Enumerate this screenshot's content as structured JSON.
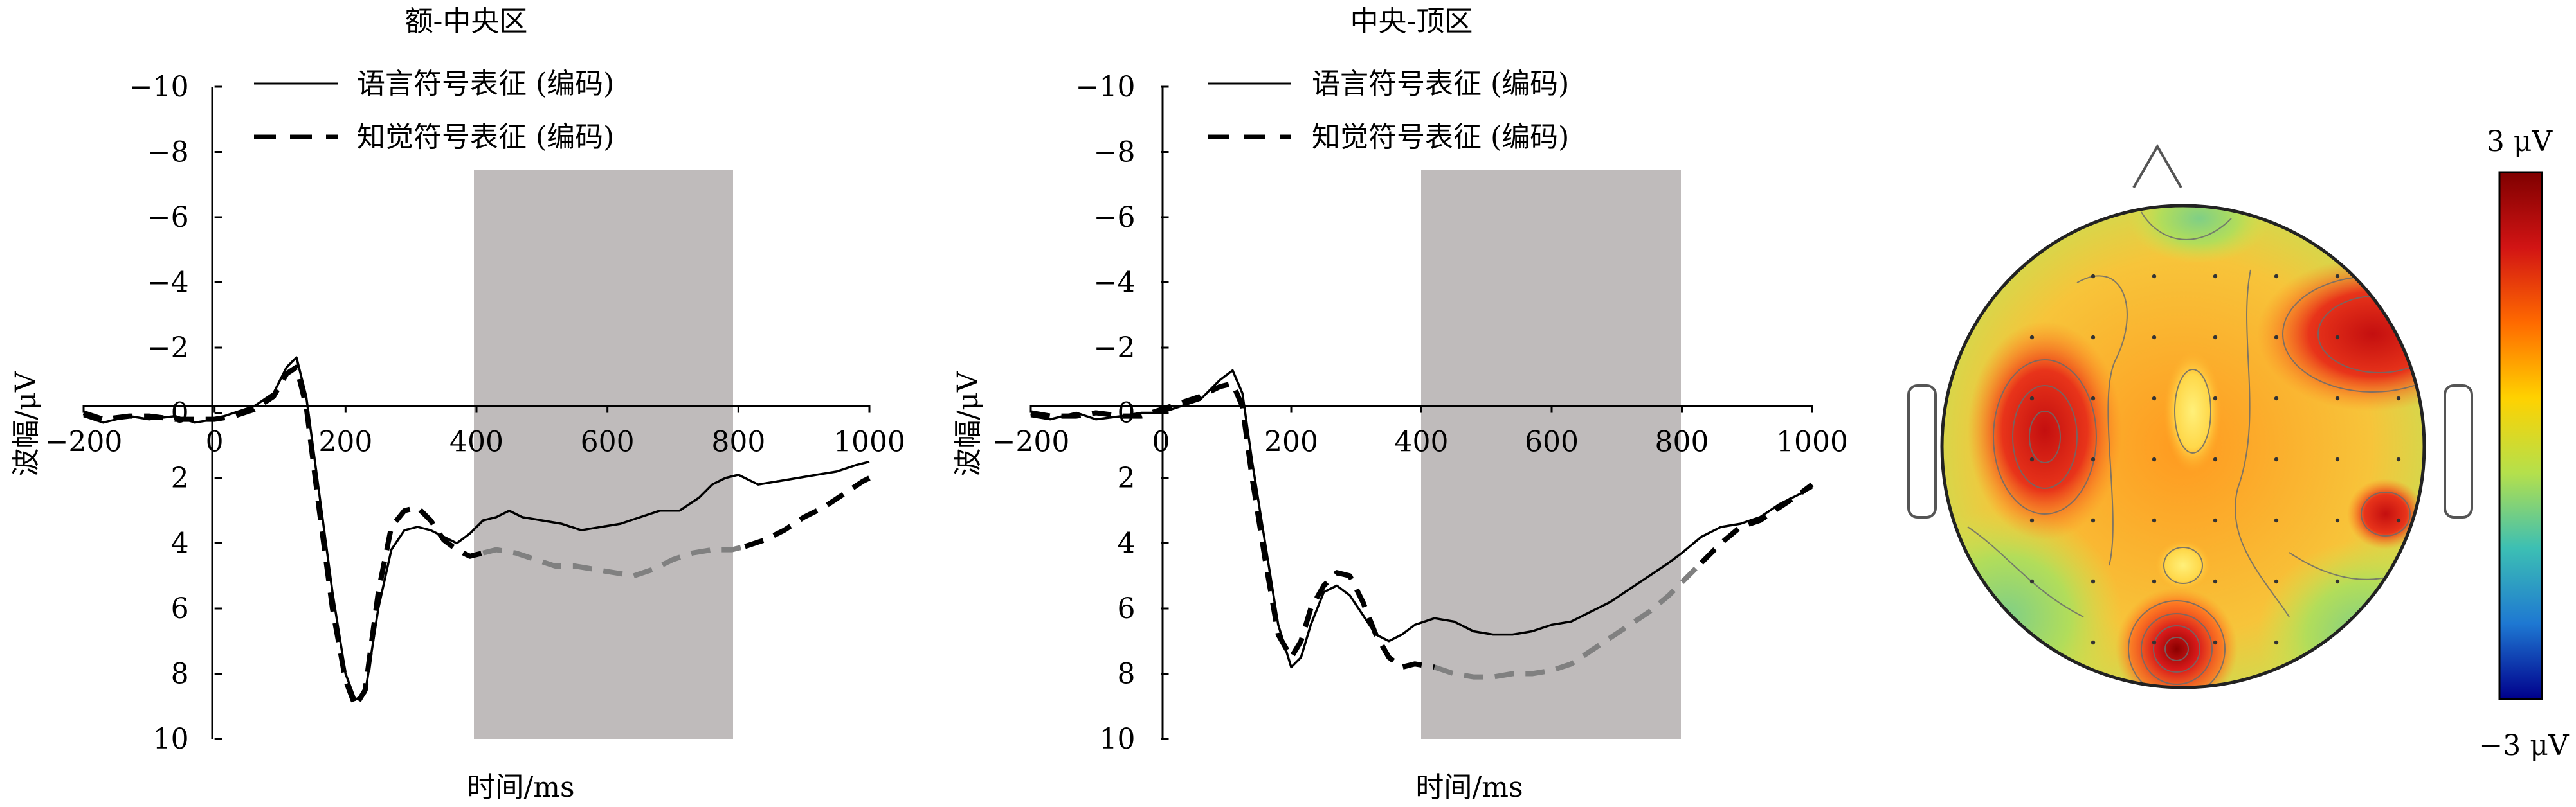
{
  "colorbar": {
    "max_label": "3 μV",
    "min_label": "−3 μV",
    "range": [
      -3,
      3
    ],
    "colors": [
      "#7f0000",
      "#d21414",
      "#ff6a00",
      "#ffd200",
      "#b4e04c",
      "#3cbfb4",
      "#1e78d2",
      "#00008c"
    ]
  },
  "chart_data": [
    {
      "type": "line",
      "title": "额-中央区",
      "xlabel": "时间/ms",
      "ylabel": "波幅/μV",
      "xlim": [
        -200,
        1000
      ],
      "ylim": [
        -10,
        10
      ],
      "y_inverted": true,
      "xticks": [
        "−200",
        "0",
        "200",
        "400",
        "600",
        "800",
        "1000"
      ],
      "xtick_values": [
        -200,
        0,
        200,
        400,
        600,
        800,
        1000
      ],
      "yticks": [
        "−10",
        "−8",
        "−6",
        "−4",
        "−2",
        "0",
        "2",
        "4",
        "6",
        "8",
        "10"
      ],
      "ytick_values": [
        -10,
        -8,
        -6,
        -4,
        -2,
        0,
        2,
        4,
        6,
        8,
        10
      ],
      "shaded_window": [
        400,
        800
      ],
      "series": [
        {
          "name": "语言符号表征 (编码)",
          "style": "solid",
          "color": "#000000",
          "points": [
            [
              -200,
              0.1
            ],
            [
              -170,
              0.3
            ],
            [
              -130,
              0.1
            ],
            [
              -100,
              0.2
            ],
            [
              -60,
              0.1
            ],
            [
              -30,
              0.3
            ],
            [
              0,
              0.2
            ],
            [
              30,
              0.0
            ],
            [
              60,
              -0.2
            ],
            [
              90,
              -0.6
            ],
            [
              110,
              -1.4
            ],
            [
              125,
              -1.7
            ],
            [
              140,
              -0.5
            ],
            [
              160,
              2.5
            ],
            [
              180,
              5.5
            ],
            [
              200,
              8.0
            ],
            [
              215,
              8.8
            ],
            [
              230,
              8.6
            ],
            [
              250,
              6.0
            ],
            [
              270,
              4.2
            ],
            [
              290,
              3.6
            ],
            [
              310,
              3.5
            ],
            [
              330,
              3.6
            ],
            [
              350,
              3.8
            ],
            [
              370,
              4.0
            ],
            [
              390,
              3.7
            ],
            [
              410,
              3.3
            ],
            [
              430,
              3.2
            ],
            [
              450,
              3.0
            ],
            [
              470,
              3.2
            ],
            [
              500,
              3.3
            ],
            [
              530,
              3.4
            ],
            [
              560,
              3.6
            ],
            [
              590,
              3.5
            ],
            [
              620,
              3.4
            ],
            [
              650,
              3.2
            ],
            [
              680,
              3.0
            ],
            [
              710,
              3.0
            ],
            [
              740,
              2.6
            ],
            [
              760,
              2.2
            ],
            [
              780,
              2.0
            ],
            [
              800,
              1.9
            ],
            [
              830,
              2.2
            ],
            [
              860,
              2.1
            ],
            [
              890,
              2.0
            ],
            [
              920,
              1.9
            ],
            [
              950,
              1.8
            ],
            [
              980,
              1.6
            ],
            [
              1000,
              1.5
            ]
          ]
        },
        {
          "name": "知觉符号表征 (编码)",
          "style": "dashed",
          "color": "#000000",
          "color_in_window": "#808080",
          "points": [
            [
              -200,
              0.0
            ],
            [
              -170,
              0.2
            ],
            [
              -130,
              0.1
            ],
            [
              -100,
              0.1
            ],
            [
              -60,
              0.2
            ],
            [
              -30,
              0.2
            ],
            [
              0,
              0.2
            ],
            [
              30,
              0.1
            ],
            [
              60,
              -0.1
            ],
            [
              90,
              -0.5
            ],
            [
              110,
              -1.2
            ],
            [
              125,
              -1.4
            ],
            [
              140,
              -0.2
            ],
            [
              160,
              3.0
            ],
            [
              180,
              6.0
            ],
            [
              200,
              8.2
            ],
            [
              215,
              9.0
            ],
            [
              230,
              8.5
            ],
            [
              250,
              5.5
            ],
            [
              270,
              3.5
            ],
            [
              290,
              3.0
            ],
            [
              310,
              2.9
            ],
            [
              330,
              3.3
            ],
            [
              350,
              3.9
            ],
            [
              370,
              4.2
            ],
            [
              390,
              4.4
            ],
            [
              410,
              4.3
            ],
            [
              430,
              4.2
            ],
            [
              460,
              4.3
            ],
            [
              490,
              4.5
            ],
            [
              520,
              4.7
            ],
            [
              550,
              4.7
            ],
            [
              580,
              4.8
            ],
            [
              610,
              4.9
            ],
            [
              640,
              5.0
            ],
            [
              670,
              4.8
            ],
            [
              700,
              4.5
            ],
            [
              730,
              4.3
            ],
            [
              760,
              4.2
            ],
            [
              790,
              4.2
            ],
            [
              810,
              4.1
            ],
            [
              840,
              3.9
            ],
            [
              870,
              3.6
            ],
            [
              900,
              3.2
            ],
            [
              930,
              2.9
            ],
            [
              960,
              2.5
            ],
            [
              990,
              2.1
            ],
            [
              1000,
              2.0
            ]
          ]
        }
      ]
    },
    {
      "type": "line",
      "title": "中央-顶区",
      "xlabel": "时间/ms",
      "ylabel": "波幅/μV",
      "xlim": [
        -200,
        1000
      ],
      "ylim": [
        -10,
        10
      ],
      "y_inverted": true,
      "xticks": [
        "−200",
        "0",
        "200",
        "400",
        "600",
        "800",
        "1000"
      ],
      "xtick_values": [
        -200,
        0,
        200,
        400,
        600,
        800,
        1000
      ],
      "yticks": [
        "−10",
        "−8",
        "−6",
        "−4",
        "−2",
        "0",
        "2",
        "4",
        "6",
        "8",
        "10"
      ],
      "ytick_values": [
        -10,
        -8,
        -6,
        -4,
        -2,
        0,
        2,
        4,
        6,
        8,
        10
      ],
      "shaded_window": [
        400,
        800
      ],
      "series": [
        {
          "name": "语言符号表征 (编码)",
          "style": "solid",
          "color": "#000000",
          "points": [
            [
              -200,
              0.1
            ],
            [
              -170,
              0.2
            ],
            [
              -130,
              0.0
            ],
            [
              -100,
              0.2
            ],
            [
              -60,
              0.1
            ],
            [
              -30,
              0.0
            ],
            [
              0,
              0.0
            ],
            [
              30,
              -0.2
            ],
            [
              60,
              -0.4
            ],
            [
              90,
              -1.0
            ],
            [
              110,
              -1.3
            ],
            [
              125,
              -0.6
            ],
            [
              140,
              1.5
            ],
            [
              160,
              4.0
            ],
            [
              180,
              6.5
            ],
            [
              200,
              7.8
            ],
            [
              215,
              7.5
            ],
            [
              230,
              6.5
            ],
            [
              250,
              5.5
            ],
            [
              270,
              5.3
            ],
            [
              290,
              5.6
            ],
            [
              310,
              6.2
            ],
            [
              330,
              6.8
            ],
            [
              350,
              7.0
            ],
            [
              370,
              6.8
            ],
            [
              390,
              6.5
            ],
            [
              420,
              6.3
            ],
            [
              450,
              6.4
            ],
            [
              480,
              6.7
            ],
            [
              510,
              6.8
            ],
            [
              540,
              6.8
            ],
            [
              570,
              6.7
            ],
            [
              600,
              6.5
            ],
            [
              630,
              6.4
            ],
            [
              660,
              6.1
            ],
            [
              690,
              5.8
            ],
            [
              720,
              5.4
            ],
            [
              750,
              5.0
            ],
            [
              780,
              4.6
            ],
            [
              800,
              4.3
            ],
            [
              830,
              3.8
            ],
            [
              860,
              3.5
            ],
            [
              890,
              3.4
            ],
            [
              920,
              3.2
            ],
            [
              950,
              2.8
            ],
            [
              980,
              2.5
            ],
            [
              1000,
              2.3
            ]
          ]
        },
        {
          "name": "知觉符号表征 (编码)",
          "style": "dashed",
          "color": "#000000",
          "color_in_window": "#808080",
          "points": [
            [
              -200,
              0.0
            ],
            [
              -170,
              0.1
            ],
            [
              -130,
              0.1
            ],
            [
              -100,
              0.0
            ],
            [
              -60,
              0.1
            ],
            [
              -30,
              0.1
            ],
            [
              0,
              -0.1
            ],
            [
              30,
              -0.3
            ],
            [
              60,
              -0.5
            ],
            [
              90,
              -0.8
            ],
            [
              110,
              -0.9
            ],
            [
              125,
              -0.2
            ],
            [
              140,
              2.0
            ],
            [
              160,
              4.5
            ],
            [
              180,
              6.8
            ],
            [
              200,
              7.5
            ],
            [
              215,
              7.0
            ],
            [
              230,
              6.0
            ],
            [
              250,
              5.3
            ],
            [
              270,
              4.9
            ],
            [
              290,
              5.0
            ],
            [
              310,
              5.8
            ],
            [
              330,
              6.8
            ],
            [
              350,
              7.5
            ],
            [
              370,
              7.8
            ],
            [
              390,
              7.7
            ],
            [
              420,
              7.8
            ],
            [
              450,
              8.0
            ],
            [
              480,
              8.1
            ],
            [
              510,
              8.1
            ],
            [
              540,
              8.0
            ],
            [
              570,
              8.0
            ],
            [
              600,
              7.9
            ],
            [
              630,
              7.7
            ],
            [
              660,
              7.3
            ],
            [
              690,
              6.9
            ],
            [
              720,
              6.5
            ],
            [
              750,
              6.1
            ],
            [
              780,
              5.6
            ],
            [
              800,
              5.2
            ],
            [
              830,
              4.6
            ],
            [
              860,
              4.0
            ],
            [
              890,
              3.5
            ],
            [
              920,
              3.3
            ],
            [
              950,
              2.9
            ],
            [
              980,
              2.5
            ],
            [
              1000,
              2.2
            ]
          ]
        }
      ]
    }
  ]
}
